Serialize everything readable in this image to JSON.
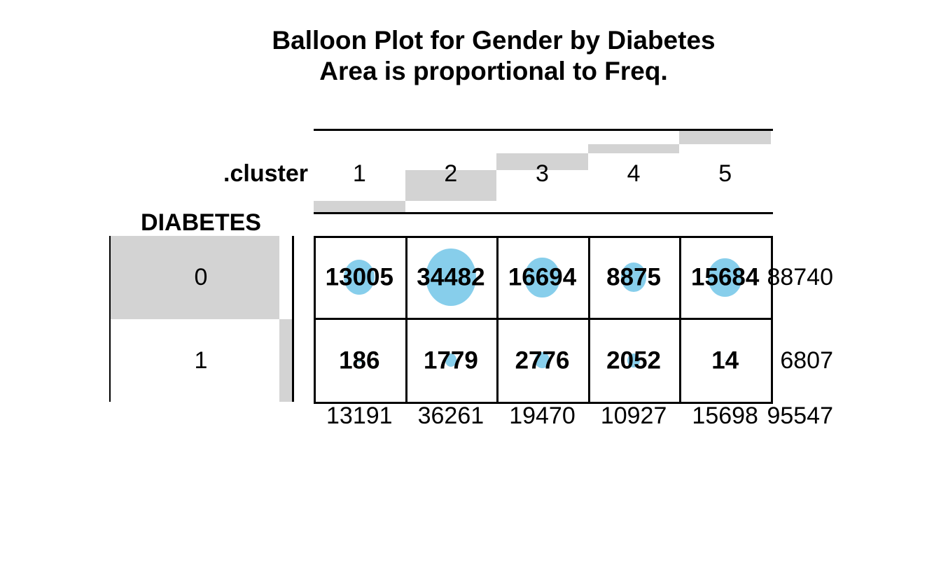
{
  "title": {
    "line1": "Balloon Plot for Gender by Diabetes",
    "line2": "Area is proportional to Freq."
  },
  "colors": {
    "balloon_fill": "#87CEEB",
    "margin_bar_fill": "#D3D3D3",
    "line_color": "#000000",
    "text_color": "#000000",
    "background": "#FFFFFF"
  },
  "chart_data": {
    "type": "balloon",
    "title": "Balloon Plot for Gender by Diabetes",
    "subtitle": "Area is proportional to Freq.",
    "column_axis_label": ".cluster",
    "row_axis_label": "DIABETES",
    "columns": [
      "1",
      "2",
      "3",
      "4",
      "5"
    ],
    "rows": [
      "0",
      "1"
    ],
    "values": [
      [
        13005,
        34482,
        16694,
        8875,
        15684
      ],
      [
        186,
        1779,
        2776,
        2052,
        14
      ]
    ],
    "row_totals": [
      88740,
      6807
    ],
    "column_totals": [
      13191,
      36261,
      19470,
      10927,
      15698
    ],
    "grand_total": 95547,
    "layout_hints": {
      "balloon_area": "proportional to cell frequency",
      "margin_bars": "gray staircase bars proportional to row and column totals",
      "grid": "2x5 table with black borders"
    }
  }
}
